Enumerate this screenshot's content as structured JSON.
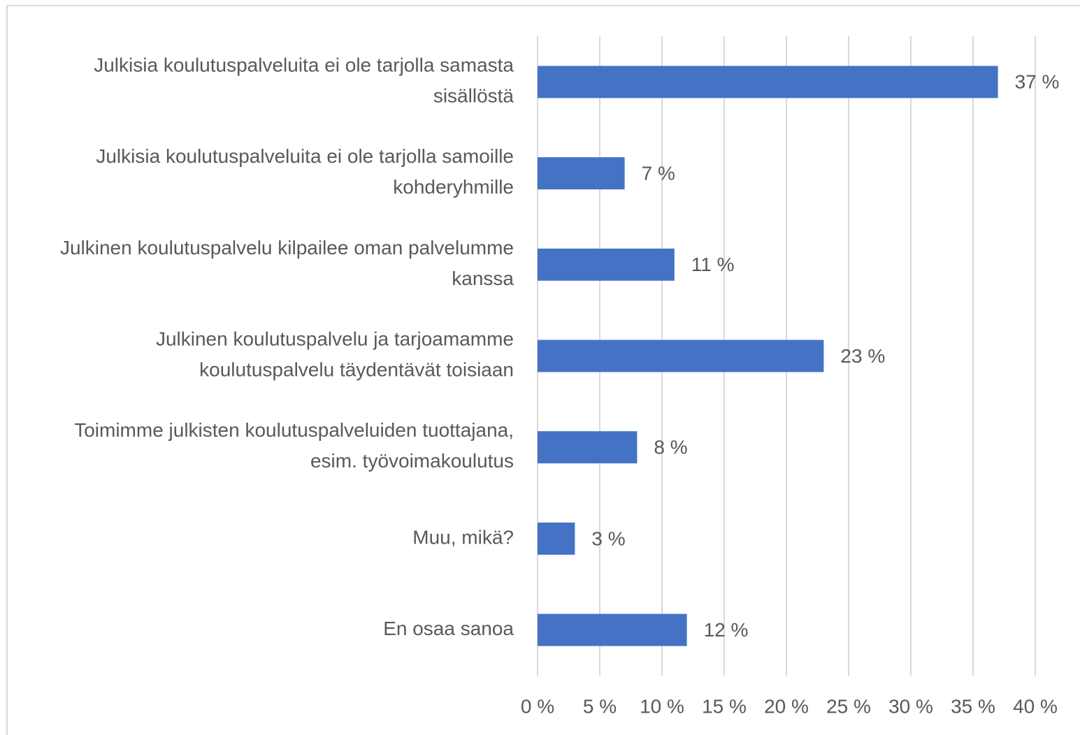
{
  "chart_data": {
    "type": "barh",
    "categories": [
      "Julkisia koulutuspalveluita ei ole tarjolla samasta sisällöstä",
      "Julkisia koulutuspalveluita ei ole tarjolla samoille kohderyhmille",
      "Julkinen koulutuspalvelu kilpailee oman palvelumme kanssa",
      "Julkinen koulutuspalvelu ja tarjoamamme koulutuspalvelu täydentävät toisiaan",
      "Toimimme julkisten koulutuspalveluiden tuottajana, esim. työvoimakoulutus",
      "Muu, mikä?",
      "En osaa sanoa"
    ],
    "values": [
      37,
      7,
      11,
      23,
      8,
      3,
      12
    ],
    "value_labels": [
      "37 %",
      "7 %",
      "11 %",
      "23 %",
      "8 %",
      "3 %",
      "12 %"
    ],
    "color": "#4472c4",
    "xlim": [
      0,
      40
    ],
    "xticks": [
      {
        "value": 0,
        "label": "0 %"
      },
      {
        "value": 5,
        "label": "5 %"
      },
      {
        "value": 10,
        "label": "10 %"
      },
      {
        "value": 15,
        "label": "15 %"
      },
      {
        "value": 20,
        "label": "20 %"
      },
      {
        "value": 25,
        "label": "25 %"
      },
      {
        "value": 30,
        "label": "30 %"
      },
      {
        "value": 35,
        "label": "35 %"
      },
      {
        "value": 40,
        "label": "40 %"
      }
    ],
    "grid": true
  }
}
